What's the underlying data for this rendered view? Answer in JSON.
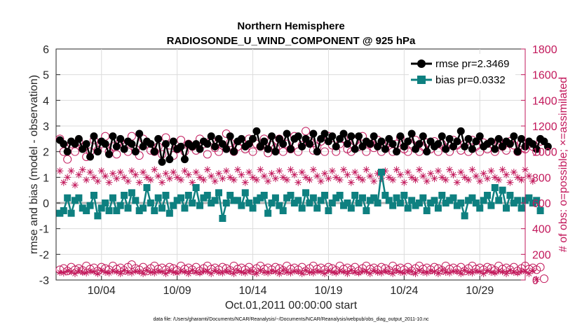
{
  "chart_data": {
    "type": "line",
    "title": "Northern Hemisphere",
    "subtitle": "RADIOSONDE_U_WIND_COMPONENT @ 925 hPa",
    "xlabel": "Oct.01,2011 00:00:00 start",
    "ylabel_left": "rmse and bias (model - observation)",
    "ylabel_right": "# of obs: o=possible; ×=assimilated",
    "footnote": "data file: /Users/gharamti/Documents/NCAR/Reanalysis/~/Documents/NCAR/Reanalysis/webpub/obs_diag_output_2011-10.nc",
    "ylim_left": [
      -3,
      6
    ],
    "ylim_right": [
      0,
      1800
    ],
    "xlim": [
      1,
      32
    ],
    "yticks_left": [
      "-3",
      "-2",
      "-1",
      "0",
      "1",
      "2",
      "3",
      "4",
      "5",
      "6"
    ],
    "yticks_right": [
      "0",
      "200",
      "400",
      "600",
      "800",
      "1000",
      "1200",
      "1400",
      "1600",
      "1800"
    ],
    "xticks": [
      {
        "value": 4,
        "label": "10/04"
      },
      {
        "value": 9,
        "label": "10/09"
      },
      {
        "value": 14,
        "label": "10/14"
      },
      {
        "value": 19,
        "label": "10/19"
      },
      {
        "value": 24,
        "label": "10/24"
      },
      {
        "value": 29,
        "label": "10/29"
      }
    ],
    "legend": [
      {
        "name": "rmse",
        "label": "rmse pr=2.3469"
      },
      {
        "name": "bias",
        "label": "bias pr=0.0332"
      }
    ],
    "x_start": 1.25,
    "x_step": 0.25,
    "series": {
      "rmse": [
        2.45,
        2.3,
        2.0,
        2.4,
        2.3,
        2.5,
        2.1,
        2.3,
        1.8,
        2.6,
        2.0,
        2.4,
        2.3,
        1.9,
        2.6,
        2.2,
        2.5,
        2.1,
        2.4,
        2.3,
        2.0,
        2.7,
        2.2,
        2.4,
        2.3,
        2.0,
        2.5,
        1.6,
        2.3,
        1.7,
        2.4,
        2.1,
        2.2,
        1.7,
        2.3,
        2.2,
        2.3,
        2.1,
        2.4,
        2.3,
        2.6,
        2.2,
        2.5,
        2.3,
        2.1,
        2.6,
        2.0,
        2.4,
        2.5,
        2.2,
        2.3,
        2.5,
        2.8,
        2.2,
        2.4,
        2.1,
        2.6,
        2.0,
        2.5,
        2.3,
        2.7,
        2.1,
        2.5,
        2.6,
        2.2,
        2.5,
        2.3,
        2.7,
        2.0,
        2.5,
        2.7,
        2.4,
        2.6,
        2.2,
        2.5,
        2.7,
        2.3,
        2.6,
        2.1,
        2.6,
        2.2,
        2.4,
        2.3,
        2.6,
        2.2,
        2.4,
        2.1,
        2.5,
        2.3,
        2.0,
        2.6,
        2.2,
        2.4,
        2.7,
        2.1,
        2.3,
        2.6,
        2.0,
        2.4,
        2.2,
        2.3,
        2.6,
        2.1,
        2.5,
        2.2,
        2.4,
        2.8,
        2.2,
        2.5,
        2.1,
        2.4,
        2.6,
        2.2,
        2.3,
        2.4,
        2.1,
        2.5,
        2.2,
        2.4,
        2.3,
        2.6,
        2.0,
        2.5,
        2.2,
        2.4,
        2.3,
        2.1,
        2.5,
        2.4,
        2.2
      ],
      "bias": [
        -0.4,
        -0.3,
        0.2,
        -0.4,
        0.1,
        0.2,
        -0.2,
        -0.3,
        -0.1,
        0.3,
        -0.5,
        -0.2,
        0.0,
        -0.3,
        0.2,
        -0.3,
        -0.1,
        0.3,
        -0.2,
        0.4,
        0.1,
        -0.3,
        -0.2,
        0.6,
        0.0,
        -0.3,
        0.2,
        -0.2,
        0.3,
        -0.4,
        -0.1,
        0.1,
        0.2,
        -0.2,
        0.3,
        0.0,
        0.6,
        -0.1,
        0.2,
        0.3,
        0.0,
        0.1,
        0.4,
        -0.6,
        0.0,
        0.3,
        0.1,
        0.1,
        -0.1,
        0.4,
        0.0,
        -0.2,
        0.1,
        0.2,
        0.3,
        -0.4,
        0.0,
        0.2,
        -0.1,
        -0.3,
        0.2,
        0.3,
        0.0,
        0.1,
        -0.2,
        0.4,
        0.0,
        0.2,
        -0.2,
        0.1,
        0.3,
        -0.3,
        0.0,
        0.2,
        0.3,
        -0.1,
        0.0,
        -0.2,
        0.3,
        0.0,
        0.2,
        -0.3,
        0.1,
        0.2,
        0.0,
        1.2,
        0.3,
        0.1,
        -0.1,
        0.2,
        0.0,
        0.3,
        -0.2,
        0.1,
        -0.1,
        0.0,
        0.2,
        -0.3,
        0.0,
        0.1,
        -0.2,
        0.3,
        0.0,
        0.1,
        0.2,
        -0.1,
        0.0,
        -0.5,
        0.1,
        0.2,
        0.0,
        -0.2,
        0.1,
        0.3,
        -0.1,
        0.6,
        0.1,
        0.5,
        -0.2,
        0.3,
        0.0,
        0.1,
        -0.2,
        0.1,
        0.2,
        0.0,
        0.1,
        -0.3
      ],
      "possible": [
        1100,
        1000,
        940,
        1060,
        1000,
        1080,
        1030,
        960,
        1000,
        1090,
        1010,
        1060,
        1120,
        1000,
        1040,
        980,
        1080,
        1050,
        1000,
        1120,
        1020,
        970,
        1100,
        1060,
        1010,
        1000,
        1040,
        980,
        1110,
        1050,
        970,
        1020,
        1090,
        1000,
        1060,
        1040,
        1010,
        1100,
        1060,
        980,
        1090,
        1030,
        1000,
        1050,
        1140,
        1070,
        1000,
        1040,
        1080,
        1020,
        1100,
        1000,
        1060,
        1040,
        1100,
        990,
        1050,
        1030,
        1100,
        1000,
        1060,
        1020,
        1120,
        1000,
        1050,
        1160,
        1080,
        1010,
        1040,
        1080,
        1000,
        1120,
        1050,
        1000,
        1060,
        1100,
        1020,
        1000,
        1080,
        1040,
        1120,
        1000,
        1060,
        1030,
        1090,
        1000,
        1040,
        1070,
        1000,
        1060,
        1110,
        1020,
        1000,
        1060,
        1090,
        1000,
        1040,
        1070,
        1020,
        1080,
        1000,
        1060,
        1030,
        1000,
        1090,
        1050,
        1010,
        1060,
        1000,
        1090,
        1040,
        1000,
        1070,
        1020,
        1060,
        1000,
        1090,
        1040,
        1010,
        1080,
        1050,
        1000,
        1070,
        1020,
        1060,
        1040,
        1000,
        1080
      ],
      "assimilated": [
        850,
        760,
        800,
        850,
        740,
        820,
        860,
        780,
        840,
        800,
        770,
        850,
        810,
        760,
        830,
        790,
        840,
        800,
        770,
        850,
        820,
        760,
        840,
        800,
        780,
        860,
        810,
        760,
        830,
        790,
        840,
        800,
        780,
        850,
        820,
        760,
        840,
        800,
        780,
        860,
        810,
        770,
        830,
        790,
        850,
        800,
        780,
        860,
        820,
        760,
        840,
        800,
        780,
        860,
        810,
        770,
        830,
        790,
        850,
        800,
        780,
        860,
        820,
        760,
        840,
        800,
        780,
        860,
        810,
        770,
        830,
        790,
        850,
        800,
        780,
        860,
        820,
        760,
        840,
        800,
        780,
        860,
        810,
        770,
        830,
        790,
        850,
        800,
        780,
        860,
        820,
        760,
        840,
        800,
        780,
        860,
        810,
        770,
        830,
        790,
        850,
        800,
        780,
        860,
        820,
        760,
        840,
        800,
        780,
        860,
        810,
        770,
        830,
        790,
        850,
        800,
        780,
        860,
        820,
        760,
        840,
        800,
        780,
        860,
        810,
        770
      ],
      "possible_low": [
        80,
        90,
        70,
        100,
        80,
        90,
        75,
        110,
        85,
        95,
        70,
        100,
        90,
        80,
        110,
        85,
        95,
        75,
        100,
        120,
        90,
        80,
        100,
        70,
        90,
        110,
        85,
        95,
        80,
        100,
        90,
        75,
        110,
        85,
        95,
        80,
        100,
        70,
        90,
        110,
        85,
        95,
        80,
        100,
        90,
        75,
        110,
        85,
        95,
        80,
        100,
        70,
        90,
        110,
        85,
        95,
        80,
        100,
        90,
        75,
        110,
        85,
        95,
        80,
        100,
        70,
        90,
        110,
        85,
        95,
        80,
        100,
        90,
        75,
        110,
        85,
        95,
        80,
        100,
        70,
        90,
        110,
        85,
        95,
        80,
        100,
        90,
        75,
        110,
        85,
        95,
        80,
        100,
        70,
        90,
        110,
        85,
        95,
        80,
        100,
        90,
        75,
        110,
        85,
        95,
        80,
        100,
        70,
        90,
        110,
        85,
        95,
        80,
        100,
        90,
        75,
        110,
        85,
        95,
        80,
        100,
        70,
        90,
        110,
        85,
        95,
        80,
        100,
        10
      ],
      "assimilated_low": [
        60,
        55,
        70,
        65,
        50,
        75,
        60,
        55,
        70,
        65,
        50,
        75,
        60,
        55,
        70,
        65,
        50,
        75,
        60,
        55,
        70,
        65,
        50,
        75,
        60,
        55,
        70,
        65,
        50,
        75,
        60,
        55,
        70,
        65,
        50,
        75,
        60,
        55,
        70,
        65,
        50,
        75,
        60,
        55,
        70,
        65,
        50,
        75,
        60,
        55,
        70,
        65,
        50,
        75,
        60,
        55,
        70,
        65,
        50,
        75,
        60,
        55,
        70,
        65,
        50,
        75,
        60,
        55,
        70,
        65,
        50,
        75,
        60,
        55,
        70,
        65,
        50,
        75,
        60,
        55,
        70,
        65,
        50,
        75,
        60,
        55,
        70,
        65,
        50,
        75,
        60,
        55,
        70,
        65,
        50,
        75,
        60,
        55,
        70,
        65,
        50,
        75,
        60,
        55,
        70,
        65,
        50,
        75,
        60,
        55,
        70,
        65,
        50,
        75,
        60,
        55,
        70,
        65,
        50,
        75,
        60,
        55,
        70,
        65,
        50,
        75,
        5
      ]
    },
    "colors": {
      "rmse": "#000000",
      "bias": "#0e8080",
      "obs": "#c2185b",
      "zero_line": "#b3b3b3"
    }
  }
}
